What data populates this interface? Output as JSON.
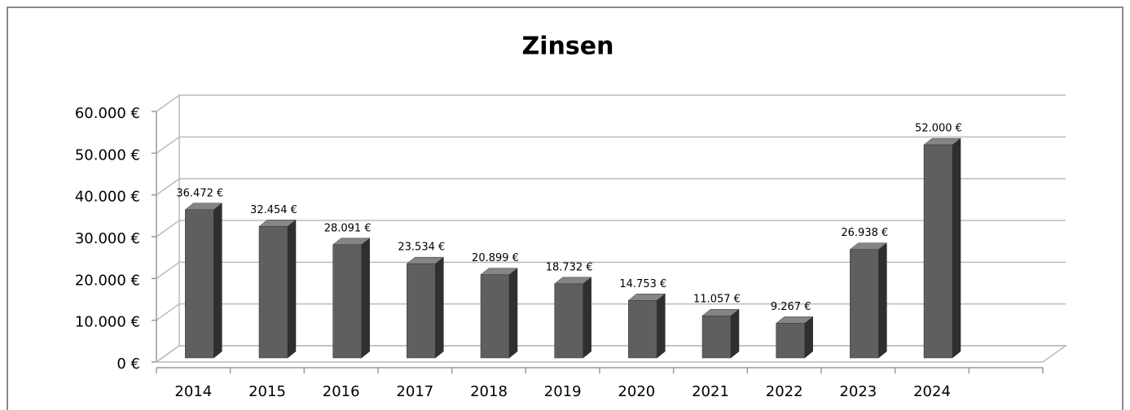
{
  "chart_data": {
    "type": "bar3d",
    "title": "Zinsen",
    "categories": [
      "2014",
      "2015",
      "2016",
      "2017",
      "2018",
      "2019",
      "2020",
      "2021",
      "2022",
      "2023",
      "2024",
      null
    ],
    "values": [
      36472,
      32454,
      28091,
      23534,
      20899,
      18732,
      14753,
      11057,
      9267,
      26938,
      52000,
      null
    ],
    "value_labels": [
      "36.472 €",
      "32.454 €",
      "28.091 €",
      "23.534 €",
      "20.899 €",
      "18.732 €",
      "14.753 €",
      "11.057 €",
      "9.267 €",
      "26.938 €",
      "52.000 €",
      null
    ],
    "color": "#5f5f5f",
    "ylim": [
      0,
      60000
    ],
    "yticks": [
      {
        "value": 0,
        "label": "0 €"
      },
      {
        "value": 10000,
        "label": "10.000 €"
      },
      {
        "value": 20000,
        "label": "20.000 €"
      },
      {
        "value": 30000,
        "label": "30.000 €"
      },
      {
        "value": 40000,
        "label": "40.000 €"
      },
      {
        "value": 50000,
        "label": "50.000 €"
      },
      {
        "value": 60000,
        "label": "60.000 €"
      }
    ],
    "grid": true
  }
}
